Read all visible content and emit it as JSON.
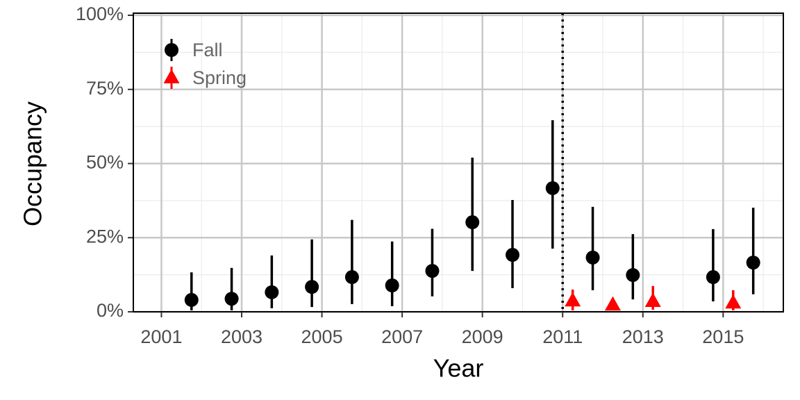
{
  "chart_data": {
    "type": "errorbar",
    "x_label": "Year",
    "y_label": "Occupancy",
    "xlim": [
      2000.3,
      2016.5
    ],
    "ylim": [
      0,
      100
    ],
    "xticks": [
      2001,
      2003,
      2005,
      2007,
      2009,
      2011,
      2013,
      2015
    ],
    "yticks": [
      {
        "value": 0,
        "label": "0%"
      },
      {
        "value": 25,
        "label": "25%"
      },
      {
        "value": 50,
        "label": "50%"
      },
      {
        "value": 75,
        "label": "75%"
      },
      {
        "value": 100,
        "label": "100%"
      }
    ],
    "grid": true,
    "legend": "top-left",
    "vline": 2011,
    "series": [
      {
        "name": "Fall",
        "color": "#000000",
        "marker": "circle",
        "x": [
          2001.75,
          2002.75,
          2003.75,
          2004.75,
          2005.75,
          2006.75,
          2007.75,
          2008.75,
          2009.75,
          2010.75,
          2011.75,
          2012.75,
          2014.75,
          2015.75
        ],
        "values": [
          4.0,
          4.4,
          6.6,
          8.4,
          11.7,
          8.9,
          13.8,
          30.2,
          19.2,
          41.7,
          18.3,
          12.4,
          11.7,
          16.6
        ],
        "lower": [
          0.5,
          0.5,
          1.2,
          1.6,
          2.6,
          1.9,
          5.2,
          13.8,
          8.0,
          21.3,
          7.3,
          4.2,
          3.5,
          5.9
        ],
        "upper": [
          13.3,
          14.8,
          19.0,
          24.4,
          31.0,
          23.7,
          28.0,
          52.0,
          37.7,
          64.6,
          35.4,
          26.2,
          27.9,
          35.1
        ]
      },
      {
        "name": "Spring",
        "color": "#ff0000",
        "marker": "triangle",
        "x": [
          2011.25,
          2012.25,
          2013.25,
          2015.25
        ],
        "values": [
          3.7,
          2.3,
          3.5,
          3.0
        ],
        "lower": [
          0.5,
          0.5,
          0.7,
          0.5
        ],
        "upper": [
          7.5,
          2.8,
          8.7,
          7.3
        ]
      }
    ]
  }
}
